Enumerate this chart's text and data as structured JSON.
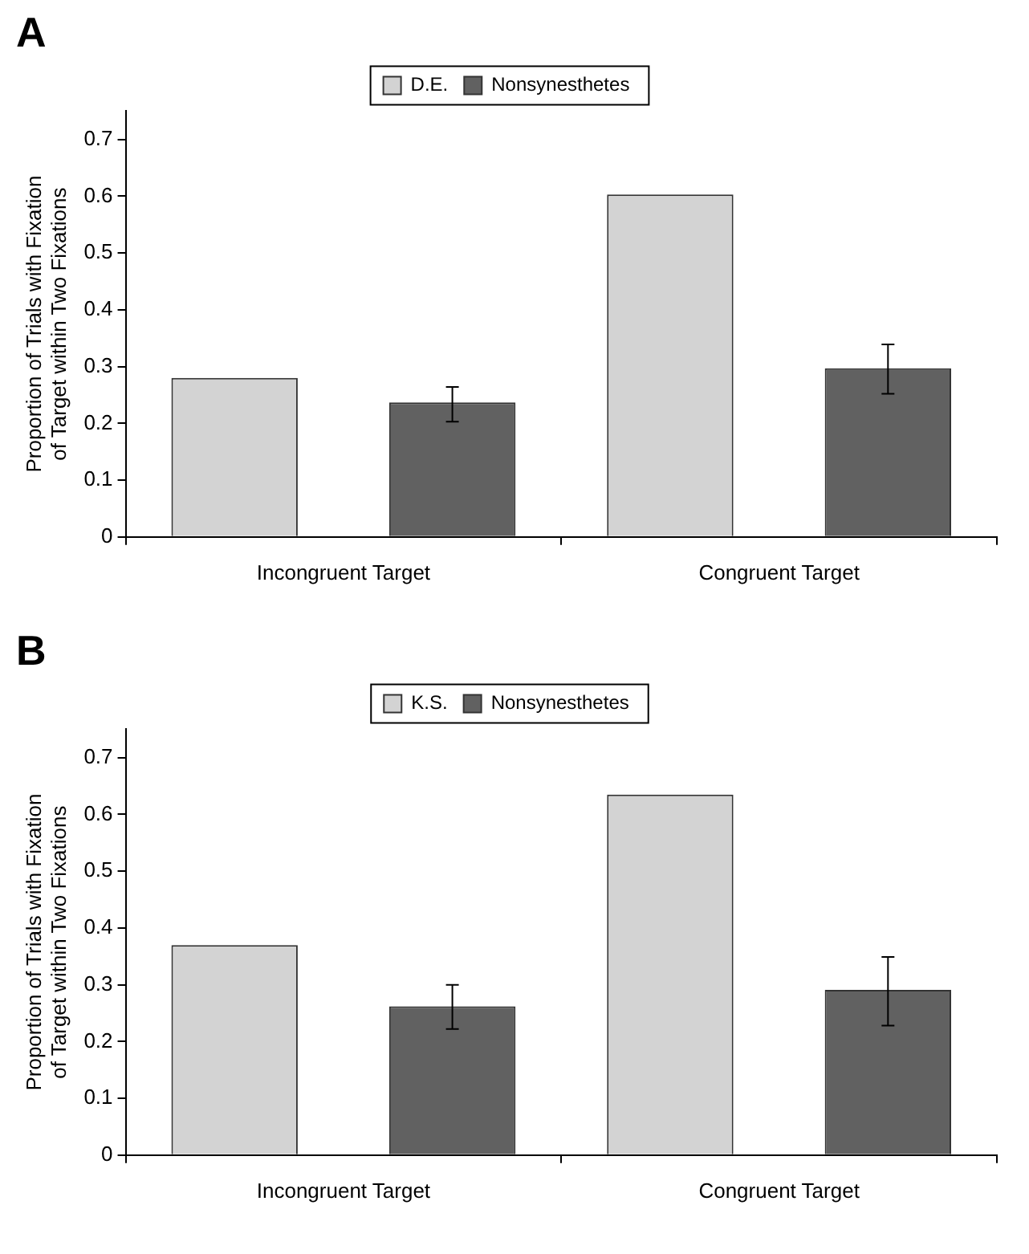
{
  "chart_data": [
    {
      "type": "bar",
      "title": "A",
      "ylabel": "Proportion of Trials with Fixation of Target within Two Fixations",
      "categories": [
        "Incongruent Target",
        "Congruent Target"
      ],
      "series": [
        {
          "name": "D.E.",
          "color": "#d3d3d3",
          "values": [
            0.28,
            0.603
          ]
        },
        {
          "name": "Nonsynesthetes",
          "color": "#616161",
          "values": [
            0.237,
            0.297
          ],
          "errors": [
            [
              0.203,
              0.264
            ],
            [
              0.252,
              0.339
            ]
          ]
        }
      ],
      "ylim": [
        0,
        0.75
      ],
      "yticks": [
        0,
        0.1,
        0.2,
        0.3,
        0.4,
        0.5,
        0.6,
        0.7
      ],
      "grid": false,
      "legend": "top"
    },
    {
      "type": "bar",
      "title": "B",
      "ylabel": "Proportion of Trials with Fixation of Target within Two Fixations",
      "categories": [
        "Incongruent Target",
        "Congruent Target"
      ],
      "series": [
        {
          "name": "K.S.",
          "color": "#d3d3d3",
          "values": [
            0.37,
            0.635
          ]
        },
        {
          "name": "Nonsynesthetes",
          "color": "#616161",
          "values": [
            0.262,
            0.291
          ],
          "errors": [
            [
              0.222,
              0.3
            ],
            [
              0.228,
              0.349
            ]
          ]
        }
      ],
      "ylim": [
        0,
        0.75
      ],
      "yticks": [
        0,
        0.1,
        0.2,
        0.3,
        0.4,
        0.5,
        0.6,
        0.7
      ],
      "grid": false,
      "legend": "top"
    }
  ]
}
